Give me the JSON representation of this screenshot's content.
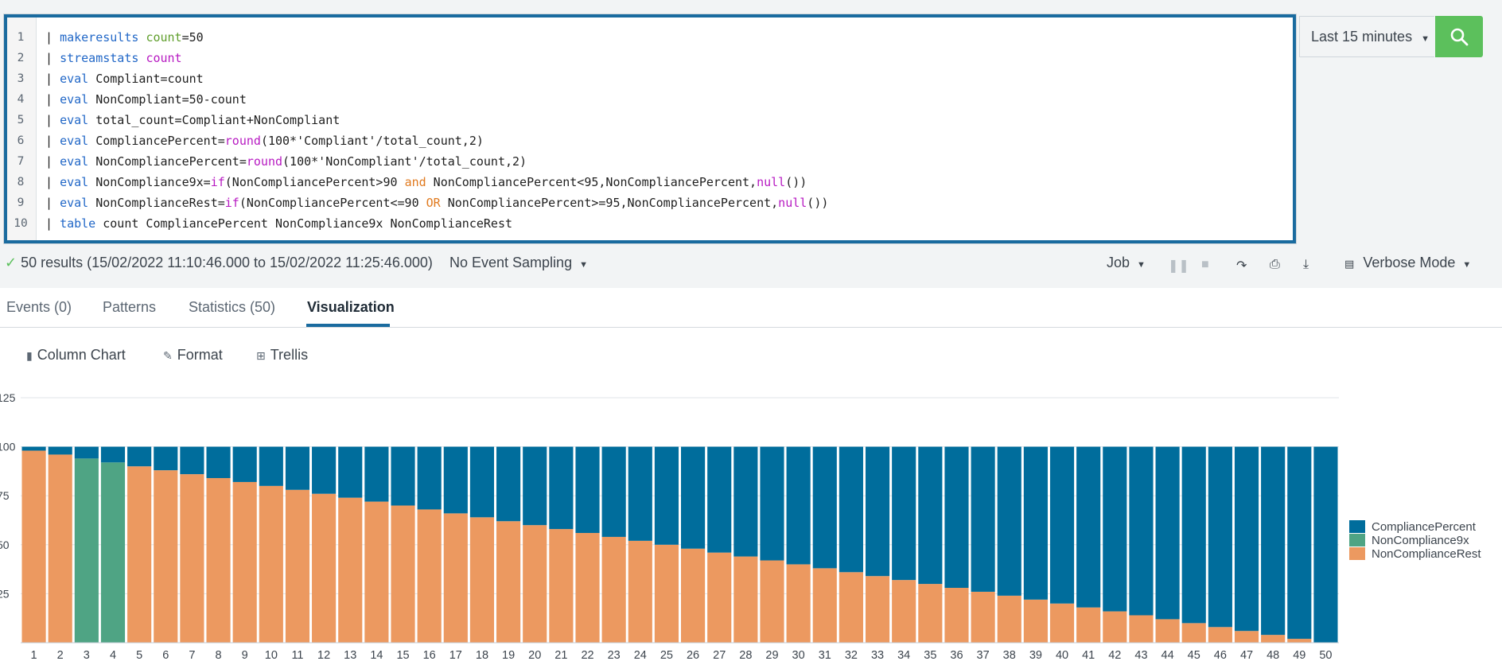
{
  "editor": {
    "lines": [
      {
        "n": "1",
        "tokens": [
          {
            "t": "| ",
            "c": ""
          },
          {
            "t": "makeresults",
            "c": "kw"
          },
          {
            "t": " ",
            "c": ""
          },
          {
            "t": "count",
            "c": "arg"
          },
          {
            "t": "=50",
            "c": ""
          }
        ]
      },
      {
        "n": "2",
        "tokens": [
          {
            "t": "| ",
            "c": ""
          },
          {
            "t": "streamstats",
            "c": "kw"
          },
          {
            "t": " ",
            "c": ""
          },
          {
            "t": "count",
            "c": "fn"
          }
        ]
      },
      {
        "n": "3",
        "tokens": [
          {
            "t": "| ",
            "c": ""
          },
          {
            "t": "eval",
            "c": "kw"
          },
          {
            "t": " Compliant=count",
            "c": ""
          }
        ]
      },
      {
        "n": "4",
        "tokens": [
          {
            "t": "| ",
            "c": ""
          },
          {
            "t": "eval",
            "c": "kw"
          },
          {
            "t": " NonCompliant=50-count",
            "c": ""
          }
        ]
      },
      {
        "n": "5",
        "tokens": [
          {
            "t": "| ",
            "c": ""
          },
          {
            "t": "eval",
            "c": "kw"
          },
          {
            "t": " total_count=Compliant+NonCompliant",
            "c": ""
          }
        ]
      },
      {
        "n": "6",
        "tokens": [
          {
            "t": "| ",
            "c": ""
          },
          {
            "t": "eval",
            "c": "kw"
          },
          {
            "t": " CompliancePercent=",
            "c": ""
          },
          {
            "t": "round",
            "c": "fn"
          },
          {
            "t": "(100*'Compliant'/total_count,2)",
            "c": ""
          }
        ]
      },
      {
        "n": "7",
        "tokens": [
          {
            "t": "| ",
            "c": ""
          },
          {
            "t": "eval",
            "c": "kw"
          },
          {
            "t": " NonCompliancePercent=",
            "c": ""
          },
          {
            "t": "round",
            "c": "fn"
          },
          {
            "t": "(100*'NonCompliant'/total_count,2)",
            "c": ""
          }
        ]
      },
      {
        "n": "8",
        "tokens": [
          {
            "t": "| ",
            "c": ""
          },
          {
            "t": "eval",
            "c": "kw"
          },
          {
            "t": " NonCompliance9x=",
            "c": ""
          },
          {
            "t": "if",
            "c": "fn"
          },
          {
            "t": "(NonCompliancePercent>90 ",
            "c": ""
          },
          {
            "t": "and",
            "c": "op"
          },
          {
            "t": " NonCompliancePercent<95,NonCompliancePercent,",
            "c": ""
          },
          {
            "t": "null",
            "c": "fn"
          },
          {
            "t": "())",
            "c": ""
          }
        ]
      },
      {
        "n": "9",
        "tokens": [
          {
            "t": "| ",
            "c": ""
          },
          {
            "t": "eval",
            "c": "kw"
          },
          {
            "t": " NonComplianceRest=",
            "c": ""
          },
          {
            "t": "if",
            "c": "fn"
          },
          {
            "t": "(NonCompliancePercent<=90 ",
            "c": ""
          },
          {
            "t": "OR",
            "c": "op"
          },
          {
            "t": " NonCompliancePercent>=95,NonCompliancePercent,",
            "c": ""
          },
          {
            "t": "null",
            "c": "fn"
          },
          {
            "t": "())",
            "c": ""
          }
        ]
      },
      {
        "n": "10",
        "tokens": [
          {
            "t": "| ",
            "c": ""
          },
          {
            "t": "table",
            "c": "kw"
          },
          {
            "t": " count CompliancePercent NonCompliance9x NonComplianceRest",
            "c": ""
          }
        ]
      }
    ]
  },
  "time_picker": {
    "label": "Last 15 minutes"
  },
  "status": {
    "results": "50 results (15/02/2022 11:10:46.000 to 15/02/2022 11:25:46.000)",
    "sampling": "No Event Sampling",
    "job": "Job",
    "mode": "Verbose Mode"
  },
  "tabs": [
    {
      "label": "Events (0)"
    },
    {
      "label": "Patterns"
    },
    {
      "label": "Statistics (50)"
    },
    {
      "label": "Visualization"
    }
  ],
  "viz_toolbar": {
    "chart_type": "Column Chart",
    "format": "Format",
    "trellis": "Trellis"
  },
  "colors": {
    "CompliancePercent": "#006d9c",
    "NonCompliance9x": "#4fa484",
    "NonComplianceRest": "#ec9960"
  },
  "chart_data": {
    "type": "bar",
    "stacked": true,
    "categories": [
      "1",
      "2",
      "3",
      "4",
      "5",
      "6",
      "7",
      "8",
      "9",
      "10",
      "11",
      "12",
      "13",
      "14",
      "15",
      "16",
      "17",
      "18",
      "19",
      "20",
      "21",
      "22",
      "23",
      "24",
      "25",
      "26",
      "27",
      "28",
      "29",
      "30",
      "31",
      "32",
      "33",
      "34",
      "35",
      "36",
      "37",
      "38",
      "39",
      "40",
      "41",
      "42",
      "43",
      "44",
      "45",
      "46",
      "47",
      "48",
      "49",
      "50"
    ],
    "series": [
      {
        "name": "NonComplianceRest",
        "values": [
          98,
          96,
          null,
          null,
          90,
          88,
          86,
          84,
          82,
          80,
          78,
          76,
          74,
          72,
          70,
          68,
          66,
          64,
          62,
          60,
          58,
          56,
          54,
          52,
          50,
          48,
          46,
          44,
          42,
          40,
          38,
          36,
          34,
          32,
          30,
          28,
          26,
          24,
          22,
          20,
          18,
          16,
          14,
          12,
          10,
          8,
          6,
          4,
          2,
          0
        ]
      },
      {
        "name": "NonCompliance9x",
        "values": [
          null,
          null,
          94,
          92,
          null,
          null,
          null,
          null,
          null,
          null,
          null,
          null,
          null,
          null,
          null,
          null,
          null,
          null,
          null,
          null,
          null,
          null,
          null,
          null,
          null,
          null,
          null,
          null,
          null,
          null,
          null,
          null,
          null,
          null,
          null,
          null,
          null,
          null,
          null,
          null,
          null,
          null,
          null,
          null,
          null,
          null,
          null,
          null,
          null,
          null
        ]
      },
      {
        "name": "CompliancePercent",
        "values": [
          2,
          4,
          6,
          8,
          10,
          12,
          14,
          16,
          18,
          20,
          22,
          24,
          26,
          28,
          30,
          32,
          34,
          36,
          38,
          40,
          42,
          44,
          46,
          48,
          50,
          52,
          54,
          56,
          58,
          60,
          62,
          64,
          66,
          68,
          70,
          72,
          74,
          76,
          78,
          80,
          82,
          84,
          86,
          88,
          90,
          92,
          94,
          96,
          98,
          100
        ]
      }
    ],
    "yticks": [
      "125",
      "100",
      "75",
      "50",
      "25"
    ],
    "ylim": [
      0,
      125
    ],
    "legend": "right",
    "grid": true
  }
}
